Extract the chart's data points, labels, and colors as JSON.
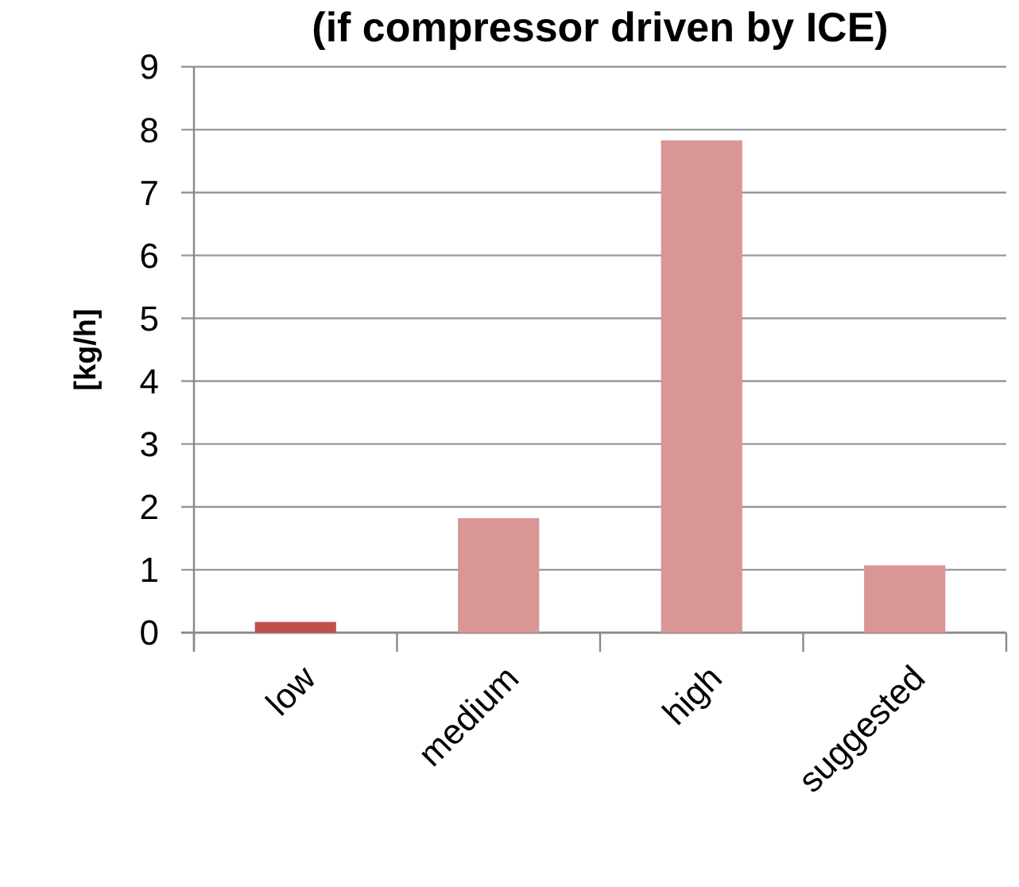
{
  "chart_data": {
    "type": "bar",
    "title": "(if compressor driven by ICE)",
    "ylabel": "[kg/h]",
    "categories": [
      "low",
      "medium",
      "high",
      "suggested"
    ],
    "values": [
      0.17,
      1.82,
      7.83,
      1.07
    ],
    "colors": [
      "#c0504d",
      "#d99694",
      "#d99694",
      "#d99694"
    ],
    "ylim": [
      0,
      9
    ],
    "yticks": [
      0,
      1,
      2,
      3,
      4,
      5,
      6,
      7,
      8,
      9
    ],
    "grid": "y"
  }
}
